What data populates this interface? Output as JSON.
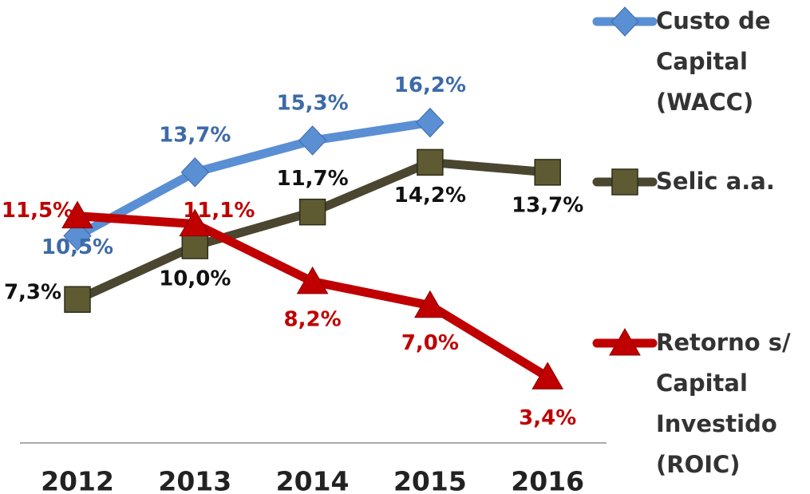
{
  "chart_data": {
    "type": "line",
    "categories": [
      "2012",
      "2013",
      "2014",
      "2015",
      "2016"
    ],
    "series": [
      {
        "name": "Custo de Capital (WACC)",
        "color": "#5a8fd4",
        "values": [
          10.5,
          13.7,
          15.3,
          16.2,
          null
        ],
        "value_labels": [
          "10,5%",
          "13,7%",
          "15,3%",
          "16,2%",
          null
        ]
      },
      {
        "name": "Selic a.a.",
        "color": "#4a4630",
        "values": [
          7.3,
          10.0,
          11.7,
          14.2,
          13.7
        ],
        "value_labels": [
          "7,3%",
          "10,0%",
          "11,7%",
          "14,2%",
          "13,7%"
        ]
      },
      {
        "name": "Retorno s/ Capital Investido (ROIC)",
        "color": "#c00000",
        "values": [
          11.5,
          11.1,
          8.2,
          7.0,
          3.4
        ],
        "value_labels": [
          "11,5%",
          "11,1%",
          "8,2%",
          "7,0%",
          "3,4%"
        ]
      }
    ],
    "ylim": [
      0,
      20
    ],
    "legend": "right"
  }
}
